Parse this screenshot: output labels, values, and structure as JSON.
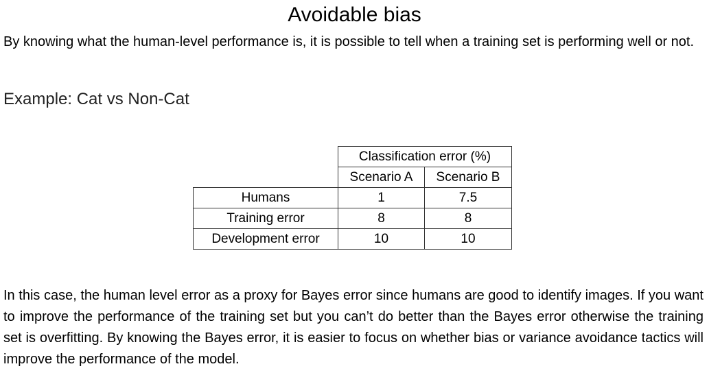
{
  "title": "Avoidable bias",
  "intro": "By knowing what the human-level performance is, it is possible to tell when a training set is performing well or not.",
  "example_heading": "Example: Cat vs Non-Cat",
  "table": {
    "group_header": "Classification error (%)",
    "columns": [
      "Scenario A",
      "Scenario B"
    ],
    "rows": [
      {
        "label": "Humans",
        "values": [
          "1",
          "7.5"
        ]
      },
      {
        "label": "Training error",
        "values": [
          "8",
          "8"
        ]
      },
      {
        "label": "Development error",
        "values": [
          "10",
          "10"
        ]
      }
    ]
  },
  "conclusion": "In this case, the human level error as a proxy for Bayes error since humans are good to identify images. If you want to improve the performance of the training set but you can’t do better than the Bayes error otherwise the training set is overfitting. By knowing the Bayes error, it is easier to focus on whether bias or variance avoidance tactics will improve the performance of the model."
}
